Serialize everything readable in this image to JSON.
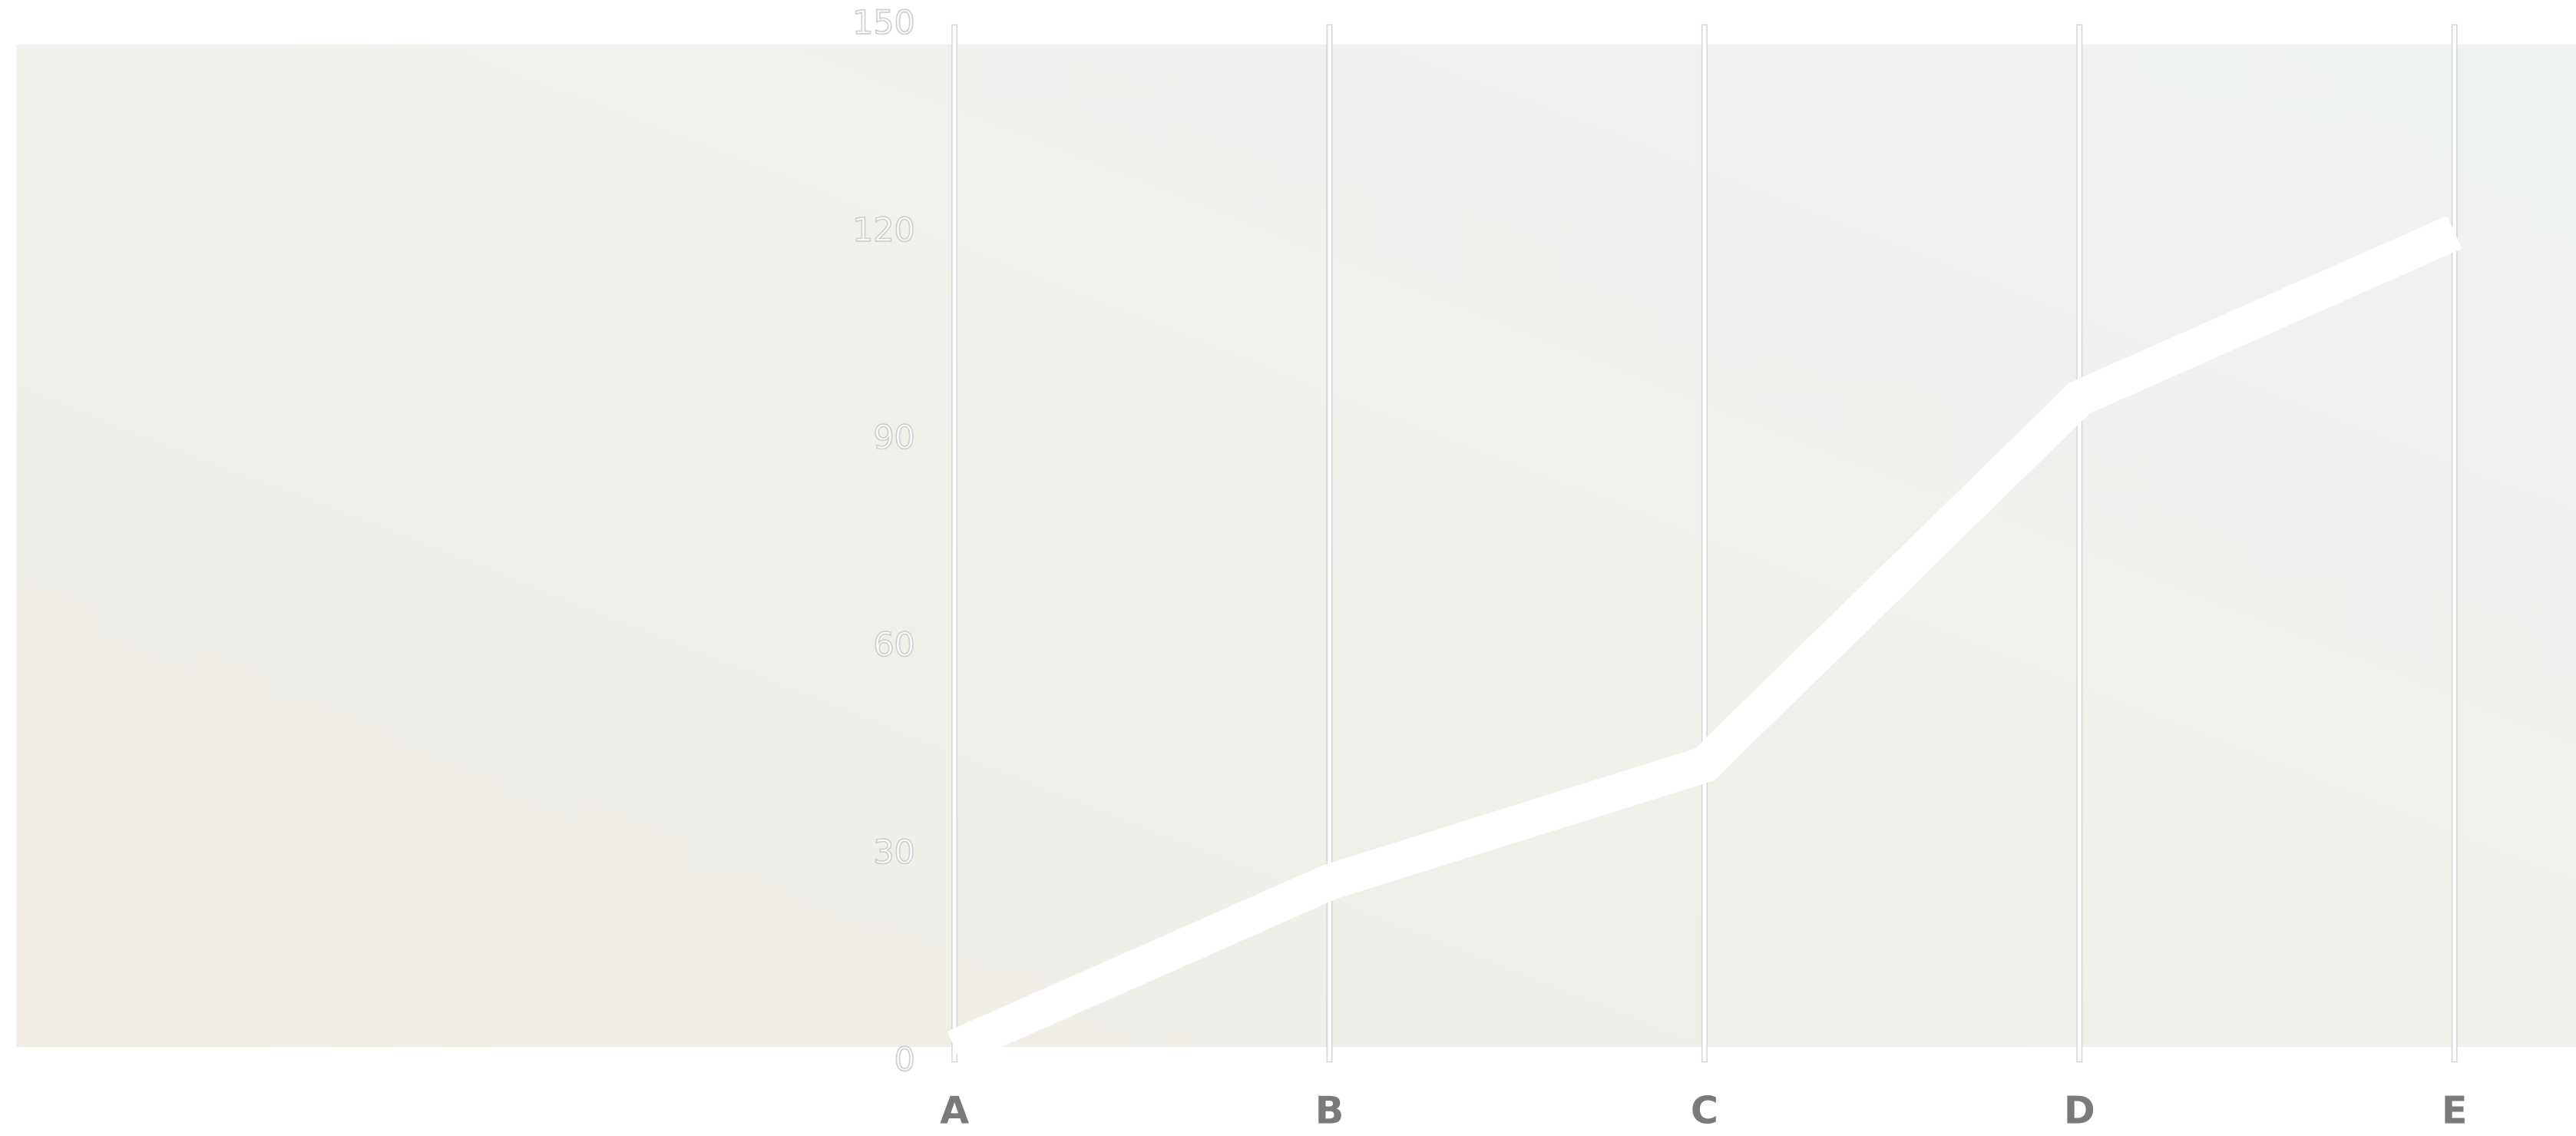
{
  "chart_data": {
    "type": "line",
    "categories": [
      "A",
      "B",
      "C",
      "D",
      "E"
    ],
    "series": [
      {
        "color": "#ffffff",
        "values": [
          2,
          26,
          43,
          96,
          120
        ]
      }
    ],
    "ylim": [
      0,
      150
    ],
    "yticks": [
      0,
      30,
      60,
      90,
      120,
      150
    ],
    "grid": true
  }
}
